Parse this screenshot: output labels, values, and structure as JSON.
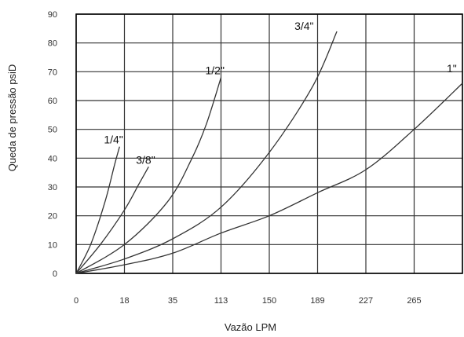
{
  "chart_data": {
    "type": "line",
    "title": "",
    "xlabel": "Vazão LPM",
    "ylabel": "Queda de pressão psiD",
    "x_tick_labels": [
      "0",
      "18",
      "35",
      "113",
      "150",
      "189",
      "227",
      "265"
    ],
    "y_ticks": [
      0,
      10,
      20,
      30,
      40,
      50,
      60,
      70,
      80,
      90
    ],
    "ylim": [
      0,
      90
    ],
    "x_axis_note": "x positions given in major-gridline index units (0 = first gridline at label 0, 7 = gridline at label 265, 8 = right edge); tick labels are non-linear",
    "xlim": [
      0,
      8
    ],
    "grid": true,
    "legend": "none",
    "colors": {
      "grid": "#333333",
      "line": "#333333",
      "frame": "#000000"
    },
    "series": [
      {
        "name": "1/4\"",
        "x": [
          0,
          0.3,
          0.6,
          0.8,
          0.9
        ],
        "y": [
          0,
          10,
          25,
          38,
          44
        ]
      },
      {
        "name": "3/8\"",
        "x": [
          0,
          0.5,
          1.0,
          1.3,
          1.5
        ],
        "y": [
          0,
          10,
          22,
          31,
          37
        ]
      },
      {
        "name": "1/2\"",
        "x": [
          0,
          1.0,
          1.9,
          2.4,
          2.7,
          3.0
        ],
        "y": [
          0,
          10,
          25,
          40,
          52,
          68
        ]
      },
      {
        "name": "3/4\"",
        "x": [
          0,
          1.0,
          2.0,
          3.0,
          4.0,
          4.9,
          5.4
        ],
        "y": [
          0,
          5,
          12,
          23,
          42,
          65,
          84
        ]
      },
      {
        "name": "1\"",
        "x": [
          0,
          1.0,
          2.0,
          3.0,
          4.0,
          5.0,
          6.0,
          7.0,
          8.0
        ],
        "y": [
          0,
          3,
          7,
          14,
          20,
          28,
          36,
          50,
          66
        ]
      }
    ]
  }
}
